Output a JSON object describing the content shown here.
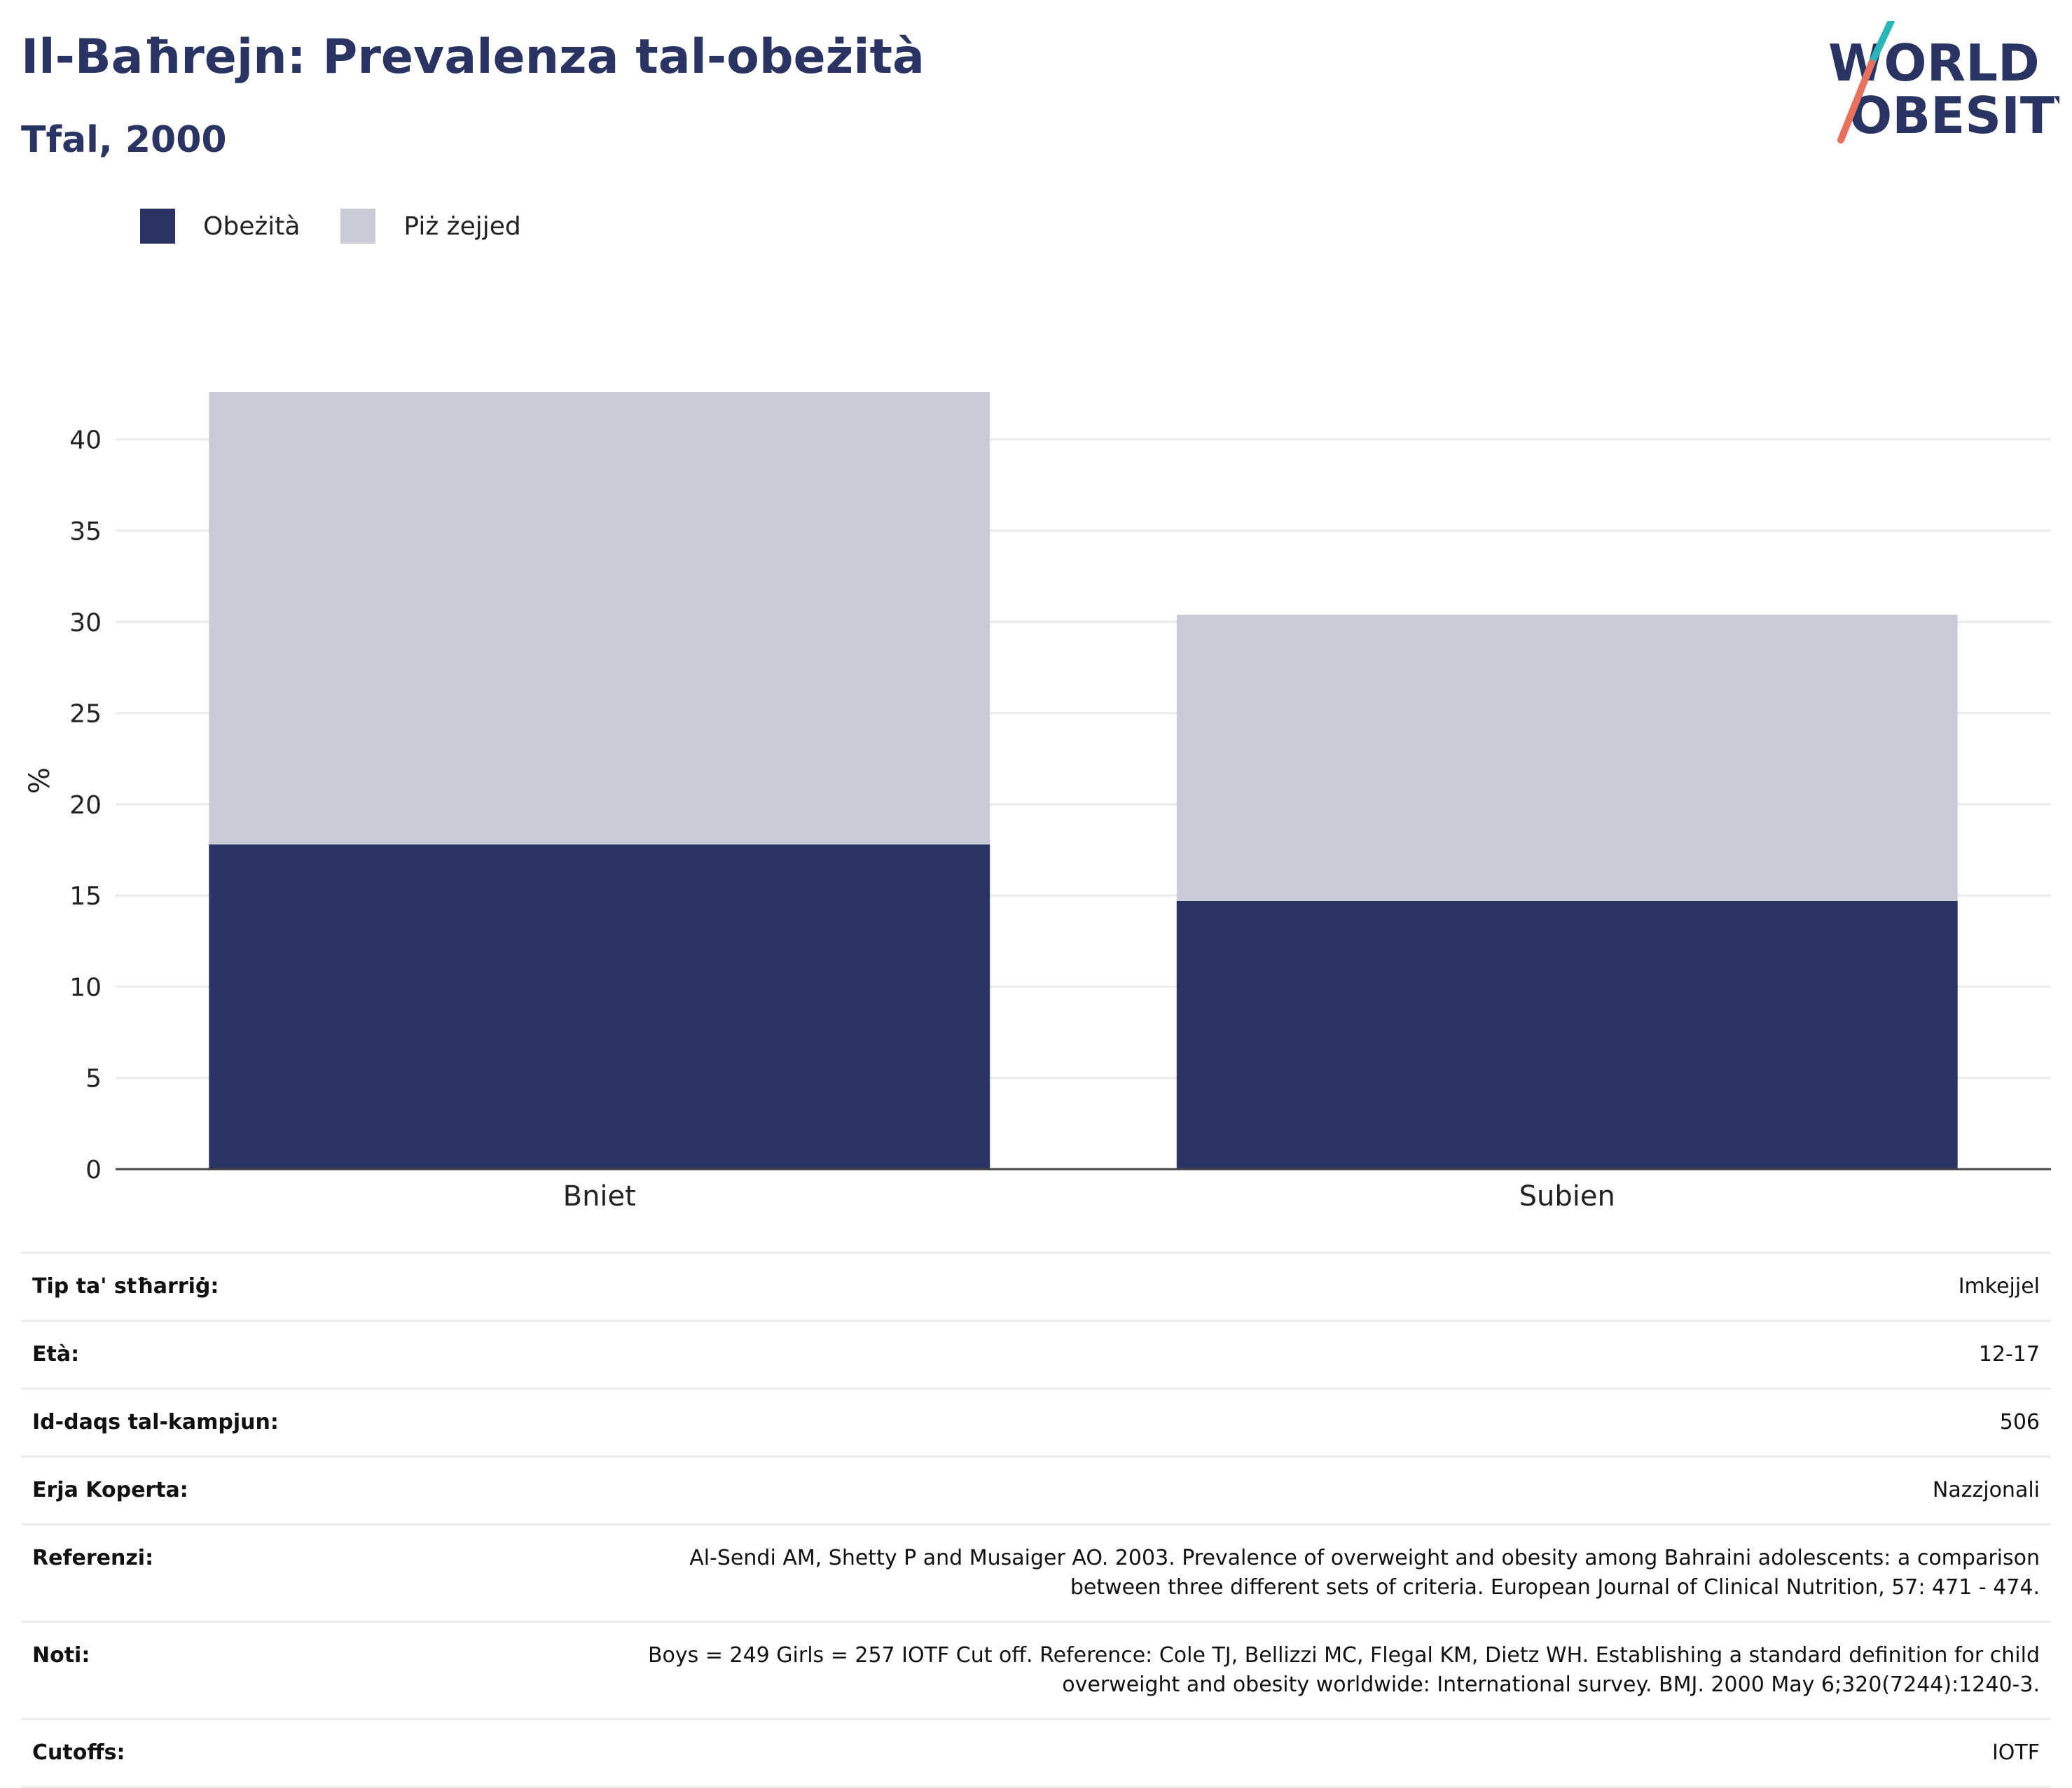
{
  "header": {
    "title": "Il-Baħrejn: Prevalenza tal-obeżità",
    "subtitle": "Tfal, 2000"
  },
  "logo": {
    "line1": "WORLD",
    "line2": "OBESITY",
    "colors": {
      "text": "#293462",
      "teal": "#2bb5b8",
      "coral": "#e8705f"
    }
  },
  "legend": [
    {
      "label": "Obeżità",
      "color": "#293462"
    },
    {
      "label": "Piż żejjed",
      "color": "#c9ccd7"
    }
  ],
  "chart_data": {
    "type": "bar",
    "stacked": true,
    "categories": [
      "Bniet",
      "Subien"
    ],
    "series": [
      {
        "name": "Obeżità",
        "color": "#293462",
        "values": [
          17.8,
          14.7
        ]
      },
      {
        "name": "Piż żejjed",
        "color": "#c9ccd7",
        "values": [
          24.8,
          15.7
        ]
      }
    ],
    "ylabel": "%",
    "ylim": [
      0,
      42.6
    ],
    "yticks": [
      0,
      5,
      10,
      15,
      20,
      25,
      30,
      35,
      40
    ],
    "grid": true,
    "legend_position": "top-left"
  },
  "info_table": [
    {
      "label": "Tip ta' stħarriġ:",
      "value": "Imkejjel"
    },
    {
      "label": "Età:",
      "value": "12-17"
    },
    {
      "label": "Id-daqs tal-kampjun:",
      "value": "506"
    },
    {
      "label": "Erja Koperta:",
      "value": "Nazzjonali"
    },
    {
      "label": "Referenzi:",
      "value_lines": [
        "Al-Sendi AM, Shetty P and Musaiger AO. 2003. Prevalence of overweight and obesity among Bahraini adolescents: a comparison",
        "between three different sets of criteria. European Journal of Clinical Nutrition, 57: 471 - 474."
      ]
    },
    {
      "label": "Noti:",
      "value_lines": [
        "Boys = 249 Girls = 257 IOTF Cut off. Reference: Cole TJ, Bellizzi MC, Flegal KM, Dietz WH. Establishing a standard definition for child",
        "overweight and obesity worldwide: International survey. BMJ. 2000 May 6;320(7244):1240-3."
      ]
    },
    {
      "label": "Cutoffs:",
      "value": "IOTF"
    }
  ]
}
